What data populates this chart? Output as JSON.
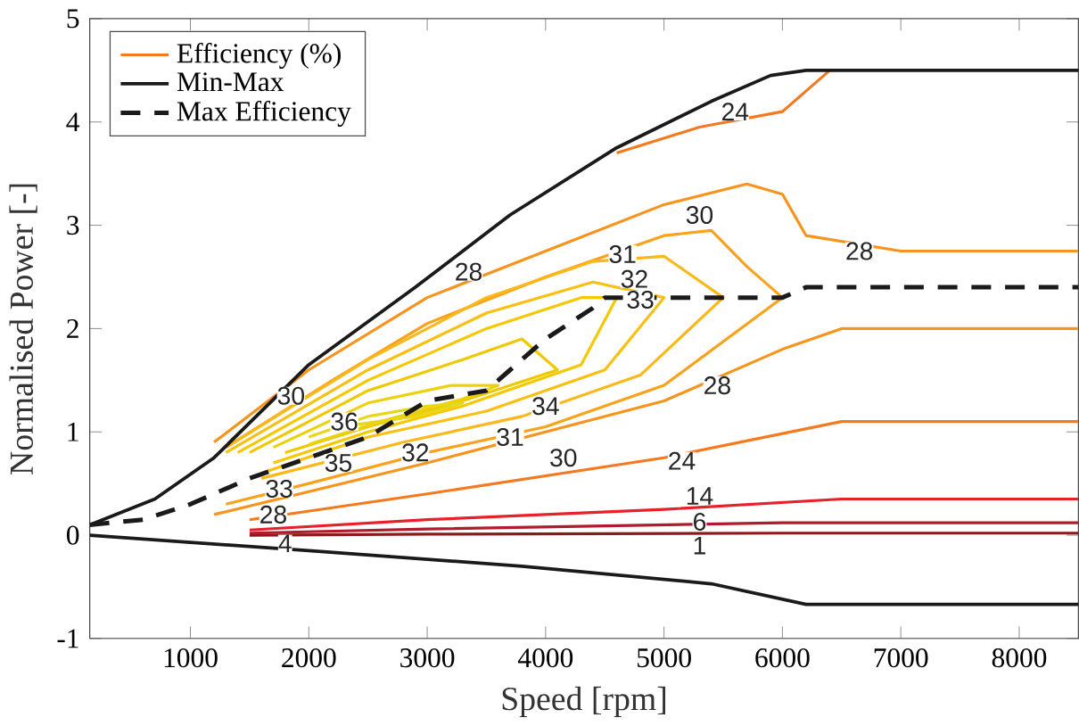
{
  "chart_data": {
    "type": "line",
    "xlabel": "Speed [rpm]",
    "ylabel": "Normalised Power [-]",
    "xlim": [
      150,
      8500
    ],
    "ylim": [
      -1,
      5
    ],
    "xticks": [
      1000,
      2000,
      3000,
      4000,
      5000,
      6000,
      7000,
      8000
    ],
    "yticks": [
      -1,
      0,
      1,
      2,
      3,
      4,
      5
    ],
    "grid": false,
    "legend": "top left",
    "series": [
      {
        "name": "Efficiency (%)",
        "color": "#f47a20",
        "x": [
          4600,
          5300,
          6000,
          6400
        ],
        "values": [
          3.7,
          3.95,
          4.1,
          4.5
        ]
      },
      {
        "color": "#8b1a1a",
        "x": [
          1500,
          3000,
          6000,
          8500
        ],
        "values": [
          0.0,
          0.01,
          0.02,
          0.02
        ]
      },
      {
        "color": "#b01c2e",
        "x": [
          1500,
          3000,
          6000,
          8500
        ],
        "values": [
          0.02,
          0.06,
          0.12,
          0.12
        ]
      },
      {
        "color": "#e8202a",
        "x": [
          1500,
          3000,
          5000,
          6500,
          8500
        ],
        "values": [
          0.05,
          0.15,
          0.25,
          0.35,
          0.35
        ]
      },
      {
        "color": "#f47a20",
        "x": [
          1500,
          3000,
          5000,
          6500,
          8500
        ],
        "values": [
          0.15,
          0.4,
          0.75,
          1.1,
          1.1
        ]
      },
      {
        "color": "#f7941d",
        "x": [
          1200,
          3000,
          5000,
          6000,
          6500,
          8500
        ],
        "values": [
          0.2,
          0.7,
          1.3,
          1.8,
          2.0,
          2.0
        ]
      },
      {
        "color": "#f7941d",
        "x": [
          1200,
          2000,
          3000,
          4000,
          5000,
          5700,
          6000,
          6200,
          7000,
          8500
        ],
        "values": [
          0.9,
          1.6,
          2.3,
          2.75,
          3.2,
          3.4,
          3.3,
          2.9,
          2.75,
          2.75
        ]
      },
      {
        "color": "#f9a21b",
        "x": [
          1300,
          2200,
          3000,
          4000,
          5000,
          5400,
          5700,
          6000,
          5000,
          4000,
          3000,
          2000,
          1300
        ],
        "values": [
          0.85,
          1.5,
          2.05,
          2.5,
          2.9,
          2.95,
          2.6,
          2.3,
          1.45,
          1.05,
          0.8,
          0.5,
          0.3
        ]
      },
      {
        "color": "#fbb81a",
        "x": [
          1300,
          2500,
          3500,
          4400,
          5000,
          5500,
          4800,
          3800,
          2800,
          1600
        ],
        "values": [
          0.85,
          1.7,
          2.3,
          2.65,
          2.7,
          2.3,
          1.55,
          1.15,
          0.9,
          0.55
        ]
      },
      {
        "color": "#f8c010",
        "x": [
          1300,
          2500,
          3500,
          4400,
          5000,
          4500,
          3500,
          2500,
          1600
        ],
        "values": [
          0.8,
          1.6,
          2.15,
          2.45,
          2.3,
          1.6,
          1.2,
          0.95,
          0.6
        ]
      },
      {
        "color": "#f5c800",
        "x": [
          1400,
          2500,
          3500,
          4300,
          4600,
          4300,
          3300,
          2500,
          1700
        ],
        "values": [
          0.8,
          1.5,
          2.0,
          2.3,
          2.3,
          1.65,
          1.25,
          1.0,
          0.7
        ]
      },
      {
        "color": "#f0c800",
        "x": [
          1500,
          2500,
          3300,
          3800,
          4100,
          3300,
          2500,
          1800
        ],
        "values": [
          0.8,
          1.4,
          1.7,
          1.9,
          1.6,
          1.3,
          1.05,
          0.8
        ]
      },
      {
        "color": "#ecd20a",
        "x": [
          1700,
          2500,
          3200,
          3600,
          3300,
          2600,
          2000
        ],
        "values": [
          0.85,
          1.28,
          1.45,
          1.45,
          1.32,
          1.1,
          0.88
        ]
      },
      {
        "color": "#e6d818",
        "x": [
          2000,
          2500,
          3000,
          3300,
          2900,
          2400
        ],
        "values": [
          0.95,
          1.15,
          1.25,
          1.28,
          1.15,
          1.07
        ]
      },
      {
        "name": "Min-Max",
        "color": "#1a1a1a",
        "x": [
          150,
          700,
          1200,
          2000,
          2900,
          3700,
          4600,
          5400,
          5900,
          6200,
          8500
        ],
        "values": [
          0.1,
          0.35,
          0.75,
          1.65,
          2.4,
          3.1,
          3.75,
          4.2,
          4.45,
          4.5,
          4.5
        ]
      },
      {
        "color": "#1a1a1a",
        "x": [
          150,
          2000,
          3800,
          5400,
          6200,
          8500
        ],
        "values": [
          0.0,
          -0.15,
          -0.3,
          -0.47,
          -0.67,
          -0.67
        ]
      },
      {
        "name": "Max Efficiency",
        "color": "#1a1a1a",
        "line_style": "dashed",
        "x": [
          150,
          600,
          1000,
          1500,
          2000,
          2500,
          3000,
          3500,
          3700,
          4000,
          4400,
          4500,
          6000,
          6200,
          8500
        ],
        "values": [
          0.1,
          0.15,
          0.3,
          0.55,
          0.75,
          0.95,
          1.3,
          1.4,
          1.6,
          1.9,
          2.2,
          2.3,
          2.3,
          2.4,
          2.4
        ]
      }
    ],
    "annotations": [
      {
        "text": "24",
        "x": 5600,
        "y": 4.1
      },
      {
        "text": "28",
        "x": 3350,
        "y": 2.55
      },
      {
        "text": "30",
        "x": 5300,
        "y": 3.1
      },
      {
        "text": "28",
        "x": 6650,
        "y": 2.75
      },
      {
        "text": "31",
        "x": 4650,
        "y": 2.72
      },
      {
        "text": "32",
        "x": 4750,
        "y": 2.48
      },
      {
        "text": "33",
        "x": 4800,
        "y": 2.28
      },
      {
        "text": "30",
        "x": 1850,
        "y": 1.35
      },
      {
        "text": "36",
        "x": 2300,
        "y": 1.1
      },
      {
        "text": "34",
        "x": 4000,
        "y": 1.25
      },
      {
        "text": "35",
        "x": 2250,
        "y": 0.7
      },
      {
        "text": "32",
        "x": 2900,
        "y": 0.8
      },
      {
        "text": "31",
        "x": 3700,
        "y": 0.95
      },
      {
        "text": "30",
        "x": 4150,
        "y": 0.75
      },
      {
        "text": "28",
        "x": 5450,
        "y": 1.45
      },
      {
        "text": "24",
        "x": 5150,
        "y": 0.72
      },
      {
        "text": "33",
        "x": 1750,
        "y": 0.45
      },
      {
        "text": "28",
        "x": 1700,
        "y": 0.2
      },
      {
        "text": "14",
        "x": 5300,
        "y": 0.38
      },
      {
        "text": "6",
        "x": 5300,
        "y": 0.13
      },
      {
        "text": "1",
        "x": 5300,
        "y": -0.1
      },
      {
        "text": "4",
        "x": 1800,
        "y": -0.08
      }
    ]
  }
}
